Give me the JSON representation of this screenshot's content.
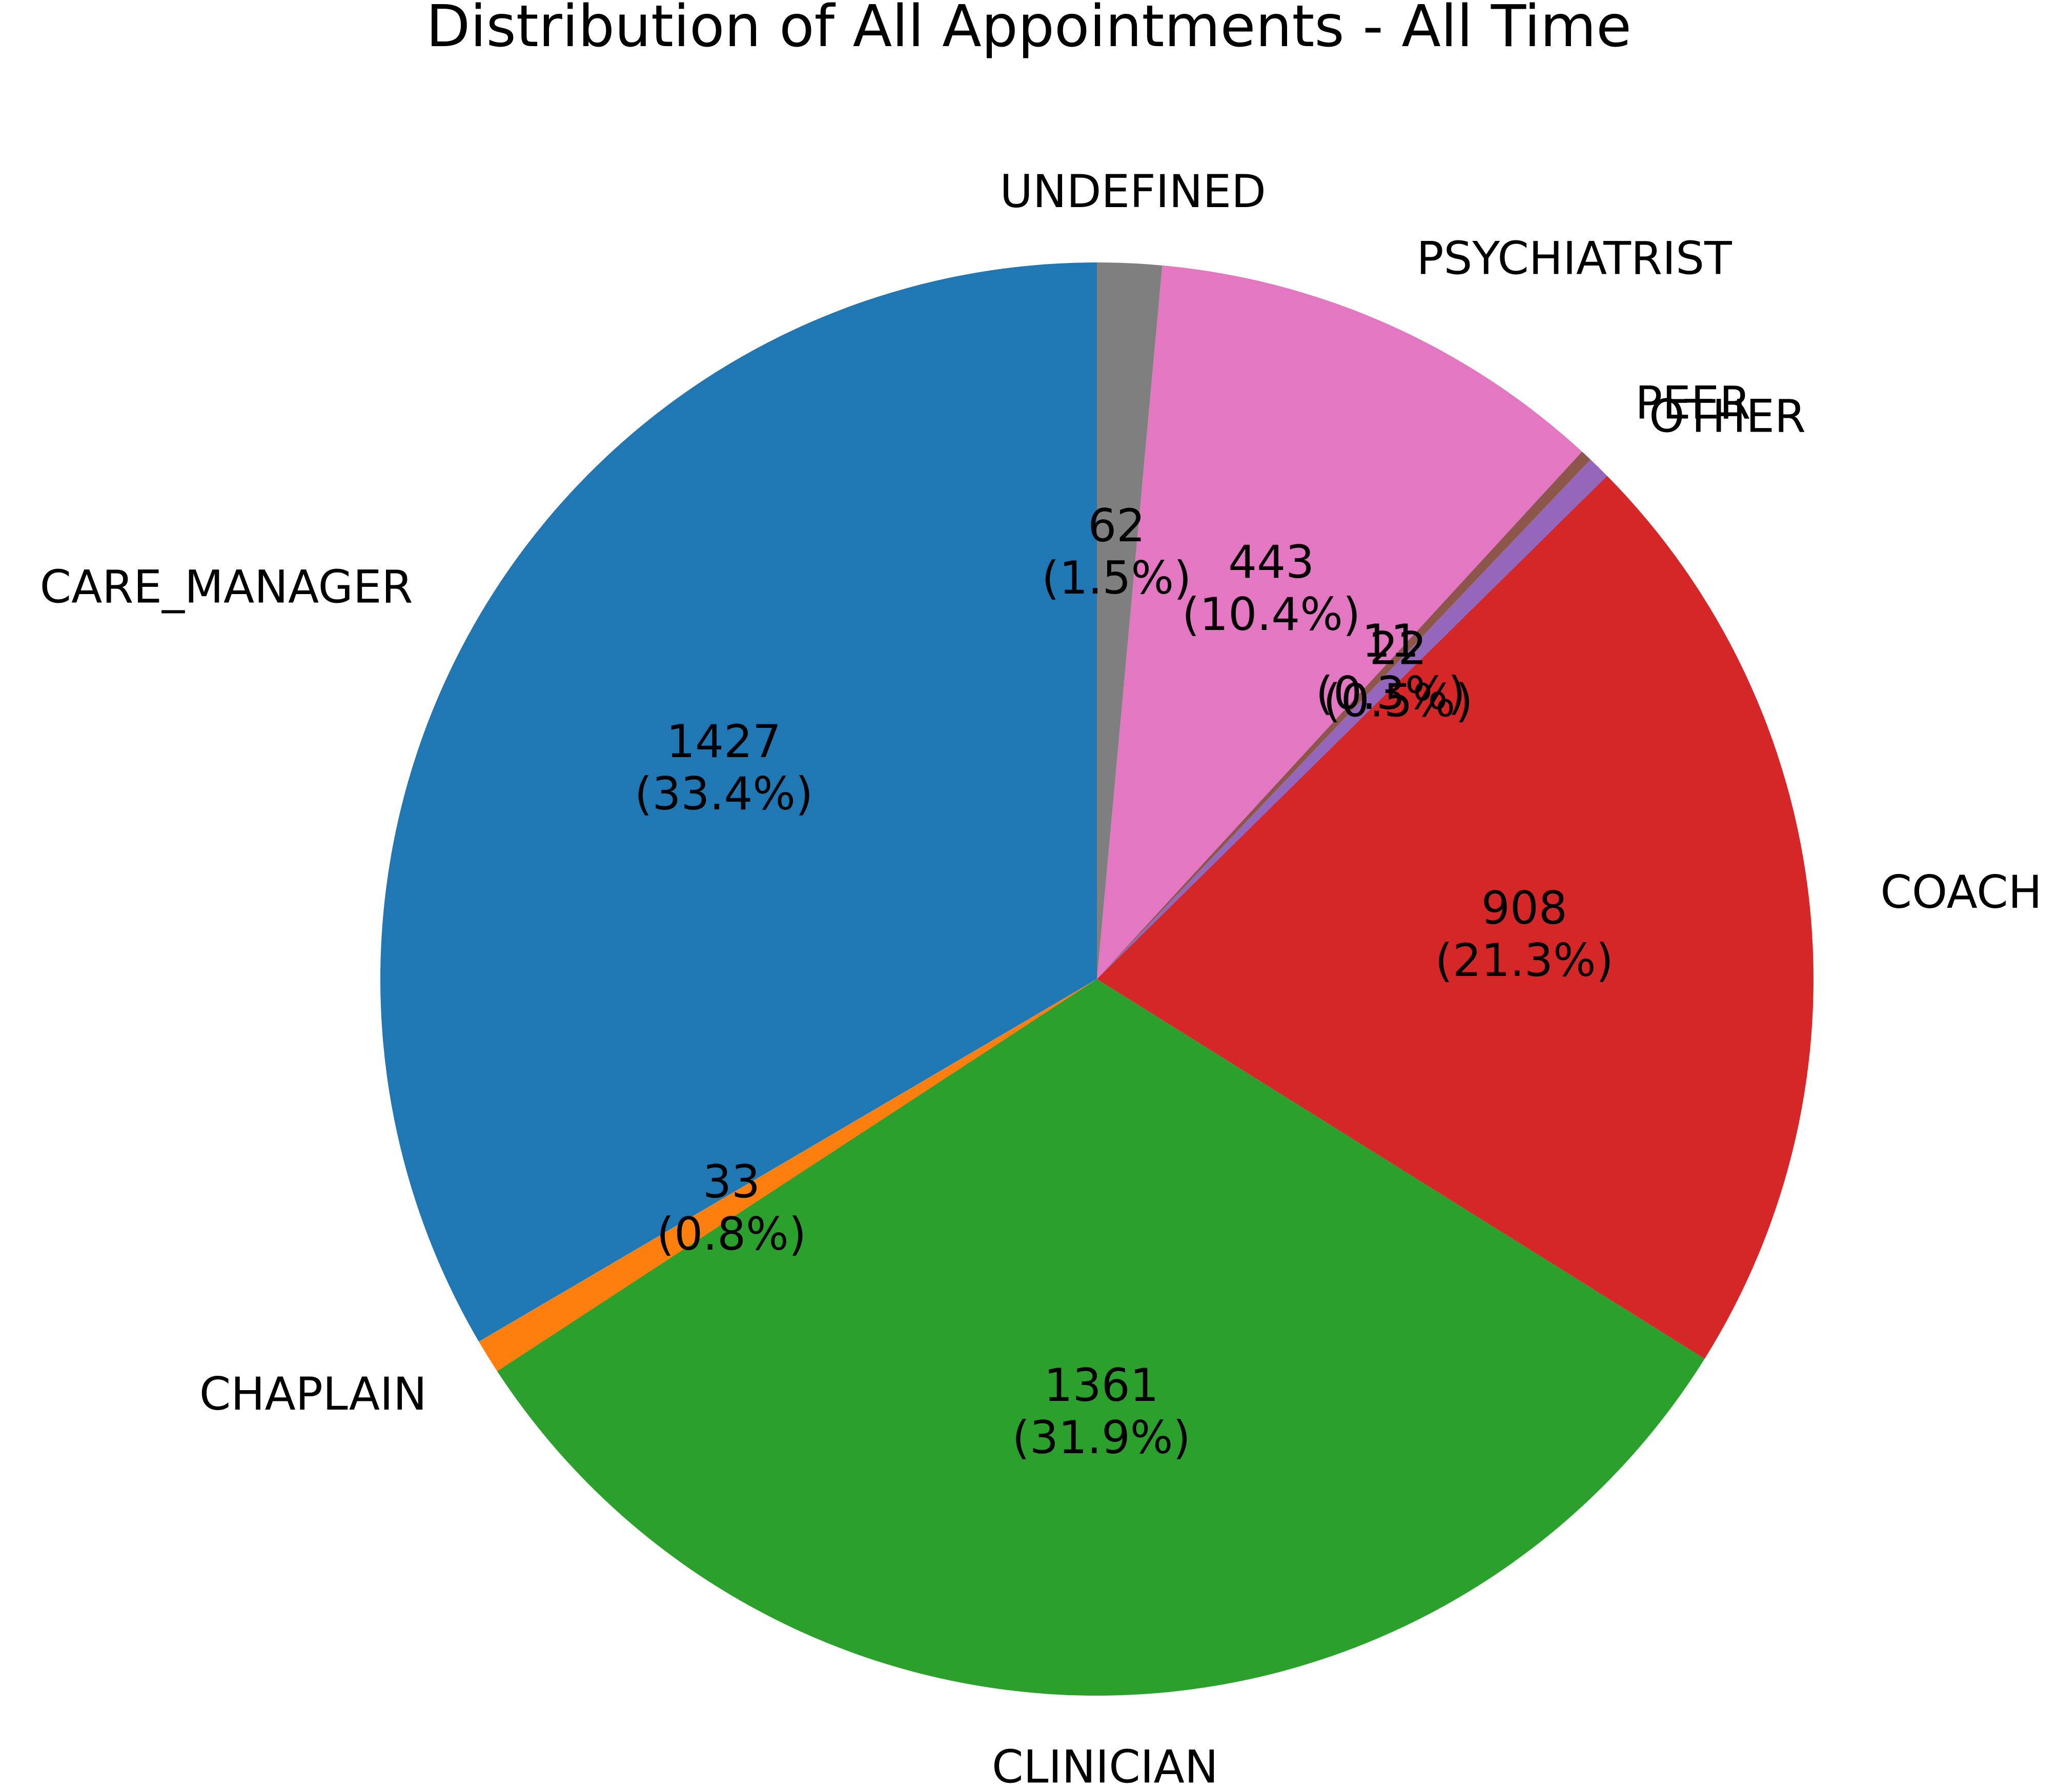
{
  "chart_data": {
    "type": "pie",
    "title": "Distribution of All Appointments - All Time",
    "start_angle": 90,
    "direction": "counterclockwise",
    "slices": [
      {
        "label": "CARE_MANAGER",
        "value": 1427,
        "percent_label": "(33.4%)",
        "color": "#1f77b4"
      },
      {
        "label": "CHAPLAIN",
        "value": 33,
        "percent_label": "(0.8%)",
        "color": "#ff7f0e"
      },
      {
        "label": "CLINICIAN",
        "value": 1361,
        "percent_label": "(31.9%)",
        "color": "#2ca02c"
      },
      {
        "label": "COACH",
        "value": 908,
        "percent_label": "(21.3%)",
        "color": "#d62728"
      },
      {
        "label": "OTHER",
        "value": 22,
        "percent_label": "(0.5%)",
        "color": "#9467bd"
      },
      {
        "label": "PEER",
        "value": 11,
        "percent_label": "(0.3%)",
        "color": "#8c564b"
      },
      {
        "label": "PSYCHIATRIST",
        "value": 443,
        "percent_label": "(10.4%)",
        "color": "#e377c2"
      },
      {
        "label": "UNDEFINED",
        "value": 62,
        "percent_label": "(1.5%)",
        "color": "#7f7f7f"
      }
    ]
  }
}
